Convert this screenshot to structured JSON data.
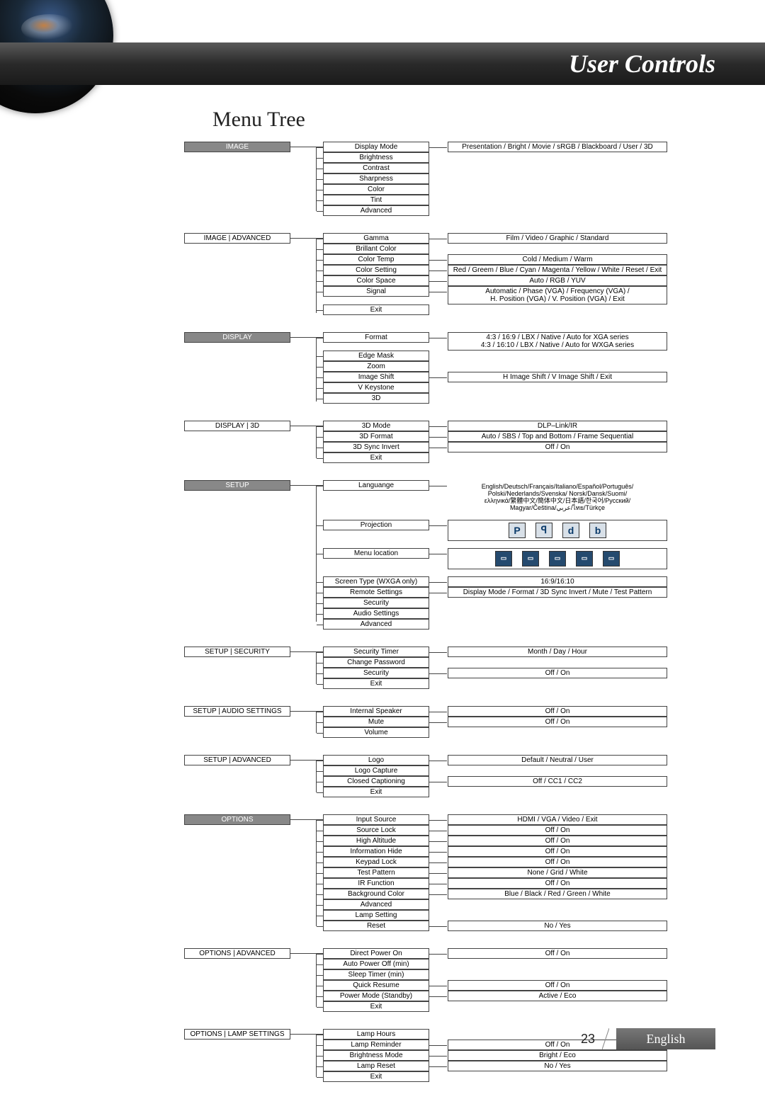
{
  "header": {
    "title": "User Controls"
  },
  "section_title": "Menu Tree",
  "footer": {
    "page": "23",
    "language": "English"
  },
  "groups": [
    {
      "top": {
        "label": "IMAGE",
        "filled": true
      },
      "items": [
        {
          "label": "Display Mode",
          "value": "Presentation / Bright / Movie / sRGB / Blackboard / User / 3D"
        },
        {
          "label": "Brightness"
        },
        {
          "label": "Contrast"
        },
        {
          "label": "Sharpness"
        },
        {
          "label": "Color"
        },
        {
          "label": "Tint"
        },
        {
          "label": "Advanced"
        }
      ]
    },
    {
      "top": {
        "label": "IMAGE | ADVANCED",
        "filled": false
      },
      "items": [
        {
          "label": "Gamma",
          "value": "Film / Video / Graphic / Standard"
        },
        {
          "label": "Brillant Color"
        },
        {
          "label": "Color Temp",
          "value": "Cold / Medium / Warm"
        },
        {
          "label": "Color Setting",
          "value": "Red / Greem / Blue / Cyan / Magenta / Yellow / White / Reset / Exit"
        },
        {
          "label": "Color Space",
          "value": "Auto / RGB / YUV"
        },
        {
          "label": "Signal",
          "value_multi": [
            "Automatic / Phase (VGA) / Frequency (VGA) /",
            "H. Position (VGA) / V. Position (VGA) / Exit"
          ]
        },
        {
          "label": "Exit"
        }
      ]
    },
    {
      "top": {
        "label": "DISPLAY",
        "filled": true
      },
      "items": [
        {
          "label": "Format",
          "value_multi": [
            "4:3 / 16:9 / LBX / Native / Auto for XGA series",
            "4:3 / 16:10 / LBX / Native / Auto for WXGA series"
          ]
        },
        {
          "label": "Edge Mask"
        },
        {
          "label": "Zoom"
        },
        {
          "label": "Image Shift",
          "value": "H Image Shift / V Image Shift / Exit"
        },
        {
          "label": "V Keystone"
        },
        {
          "label": "3D"
        }
      ]
    },
    {
      "top": {
        "label": "DISPLAY | 3D",
        "filled": false
      },
      "items": [
        {
          "label": "3D Mode",
          "value": "DLP–Link/IR"
        },
        {
          "label": "3D Format",
          "value": "Auto / SBS / Top and Bottom / Frame Sequential"
        },
        {
          "label": "3D Sync Invert",
          "value": "Off / On"
        },
        {
          "label": "Exit"
        }
      ]
    },
    {
      "top": {
        "label": "SETUP",
        "filled": true
      },
      "items": [
        {
          "label": "Languange",
          "value_lang": [
            "English/Deutsch/Français/Italiano/Español/Português/",
            "Polski/Nederlands/Svenska/ Norsk/Dansk/Suomi/",
            "ελληνικά/繁體中文/簡体中文/日本語/한국어/Русский/",
            "Magyar/Čeština/عربي/ไทย/Türkçe"
          ],
          "spacer_after": true
        },
        {
          "label": "Projection",
          "icons_light": true,
          "spacer_after": true
        },
        {
          "label": "Menu location",
          "icons_dark": true,
          "spacer_after": true
        },
        {
          "label": "Screen Type (WXGA only)",
          "value": "16:9/16:10"
        },
        {
          "label": "Remote Settings",
          "value": "Display Mode / Format / 3D Sync Invert / Mute / Test Pattern"
        },
        {
          "label": "Security"
        },
        {
          "label": "Audio Settings"
        },
        {
          "label": "Advanced"
        }
      ]
    },
    {
      "top": {
        "label": "SETUP | SECURITY",
        "filled": false
      },
      "items": [
        {
          "label": "Security Timer",
          "value": "Month / Day / Hour"
        },
        {
          "label": "Change Password"
        },
        {
          "label": "Security",
          "value": "Off / On"
        },
        {
          "label": "Exit"
        }
      ]
    },
    {
      "top": {
        "label": "SETUP | AUDIO SETTINGS",
        "filled": false
      },
      "items": [
        {
          "label": "Internal Speaker",
          "value": "Off / On"
        },
        {
          "label": "Mute",
          "value": "Off / On"
        },
        {
          "label": "Volume"
        }
      ]
    },
    {
      "top": {
        "label": "SETUP | ADVANCED",
        "filled": false
      },
      "items": [
        {
          "label": "Logo",
          "value": "Default / Neutral / User"
        },
        {
          "label": "Logo Capture"
        },
        {
          "label": "Closed Captioning",
          "value": "Off / CC1 / CC2"
        },
        {
          "label": "Exit"
        }
      ]
    },
    {
      "top": {
        "label": "OPTIONS",
        "filled": true
      },
      "items": [
        {
          "label": "Input Source",
          "value": "HDMI / VGA / Video / Exit"
        },
        {
          "label": "Source Lock",
          "value": "Off / On"
        },
        {
          "label": "High Altitude",
          "value": "Off / On"
        },
        {
          "label": "Information Hide",
          "value": "Off / On"
        },
        {
          "label": "Keypad Lock",
          "value": "Off / On"
        },
        {
          "label": "Test Pattern",
          "value": "None / Grid / White"
        },
        {
          "label": "IR Function",
          "value": "Off / On"
        },
        {
          "label": "Background Color",
          "value": "Blue / Black / Red / Green / White"
        },
        {
          "label": "Advanced"
        },
        {
          "label": "Lamp Setting"
        },
        {
          "label": "Reset",
          "value": "No / Yes"
        }
      ]
    },
    {
      "top": {
        "label": "OPTIONS | ADVANCED",
        "filled": false
      },
      "items": [
        {
          "label": "Direct Power On",
          "value": "Off / On"
        },
        {
          "label": "Auto Power Off (min)"
        },
        {
          "label": "Sleep Timer (min)"
        },
        {
          "label": "Quick Resume",
          "value": "Off / On"
        },
        {
          "label": "Power Mode (Standby)",
          "value": "Active / Eco"
        },
        {
          "label": "Exit"
        }
      ]
    },
    {
      "top": {
        "label": "OPTIONS | LAMP SETTINGS",
        "filled": false
      },
      "items": [
        {
          "label": "Lamp Hours"
        },
        {
          "label": "Lamp Reminder",
          "value": "Off / On"
        },
        {
          "label": "Brightness Mode",
          "value": "Bright / Eco"
        },
        {
          "label": "Lamp Reset",
          "value": "No / Yes"
        },
        {
          "label": "Exit"
        }
      ]
    }
  ]
}
